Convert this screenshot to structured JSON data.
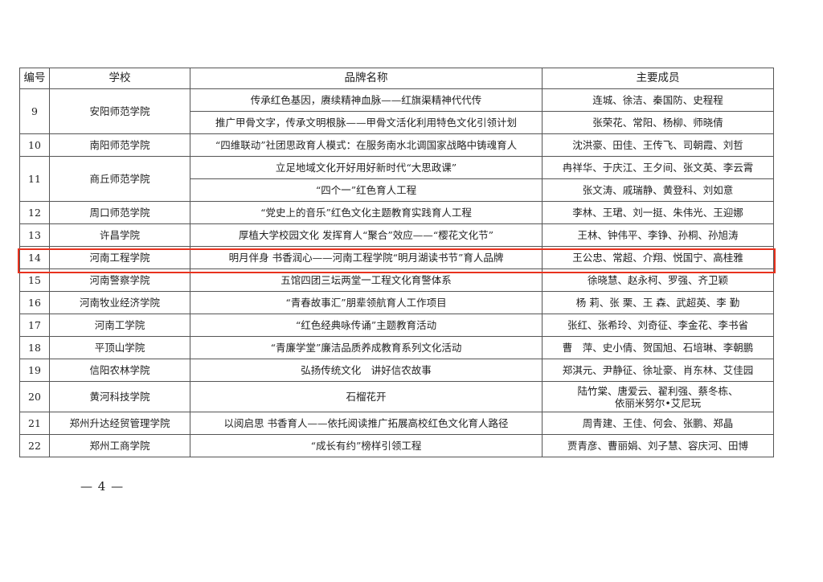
{
  "table": {
    "headers": [
      "编号",
      "学校",
      "品牌名称",
      "主要成员"
    ],
    "rows": [
      {
        "no": "9",
        "school": "安阳师范学院",
        "entries": [
          {
            "brand": "传承红色基因，赓续精神血脉——红旗渠精神代代传",
            "members": "连城、徐洁、秦国防、史程程"
          },
          {
            "brand": "推广甲骨文字，传承文明根脉——甲骨文活化利用特色文化引领计划",
            "members": "张荣花、常阳、杨柳、师晓倩"
          }
        ]
      },
      {
        "no": "10",
        "school": "南阳师范学院",
        "entries": [
          {
            "brand": "“四维联动”社团思政育人模式：在服务南水北调国家战略中铸魂育人",
            "members": "沈洪豪、田佳、王传飞、司朝霞、刘哲"
          }
        ]
      },
      {
        "no": "11",
        "school": "商丘师范学院",
        "entries": [
          {
            "brand": "立足地域文化开好用好新时代“大思政课”",
            "members": "冉祥华、于庆江、王夕间、张文英、李云霄"
          },
          {
            "brand": "“四个一”红色育人工程",
            "members": "张文涛、戚瑞静、黄登科、刘如意"
          }
        ]
      },
      {
        "no": "12",
        "school": "周口师范学院",
        "entries": [
          {
            "brand": "“党史上的音乐”红色文化主题教育实践育人工程",
            "members": "李林、王珺、刘一挺、朱伟光、王迎娜"
          }
        ]
      },
      {
        "no": "13",
        "school": "许昌学院",
        "entries": [
          {
            "brand": "厚植大学校园文化 发挥育人“聚合”效应——“樱花文化节”",
            "members": "王林、钟伟平、李铮、孙桐、孙旭涛"
          }
        ]
      },
      {
        "no": "14",
        "school": "河南工程学院",
        "highlighted": true,
        "entries": [
          {
            "brand": "明月伴身 书香润心——河南工程学院“明月湖读书节”育人品牌",
            "members": "王公忠、常超、介翔、悦国宁、高桂雅"
          }
        ]
      },
      {
        "no": "15",
        "school": "河南警察学院",
        "entries": [
          {
            "brand": "五馆四团三坛两堂一工程文化育警体系",
            "members": "徐晓慧、赵永柯、罗强、齐卫颖"
          }
        ]
      },
      {
        "no": "16",
        "school": "河南牧业经济学院",
        "entries": [
          {
            "brand": "“青春故事汇”朋辈领航育人工作项目",
            "members": "杨 莉、张 栗、王 森、武超英、李 勤"
          }
        ]
      },
      {
        "no": "17",
        "school": "河南工学院",
        "entries": [
          {
            "brand": "“红色经典咏传诵”主题教育活动",
            "members": "张红、张希玲、刘奇征、李金花、李书省"
          }
        ]
      },
      {
        "no": "18",
        "school": "平顶山学院",
        "entries": [
          {
            "brand": "“青廉学堂”廉洁品质养成教育系列文化活动",
            "members": "曹　萍、史小倩、贺国旭、石培琳、李朝鹏"
          }
        ]
      },
      {
        "no": "19",
        "school": "信阳农林学院",
        "entries": [
          {
            "brand": "弘扬传统文化　讲好信农故事",
            "members": "郑淇元、尹静征、徐址豪、肖东林、艾佳园"
          }
        ]
      },
      {
        "no": "20",
        "school": "黄河科技学院",
        "tall": true,
        "entries": [
          {
            "brand": "石榴花开",
            "members": "陆竹棠、唐爱云、翟利强、蔡冬栋、\n依丽米努尔•艾尼玩"
          }
        ]
      },
      {
        "no": "21",
        "school": "郑州升达经贸管理学院",
        "entries": [
          {
            "brand": "以阅启思 书香育人——依托阅读推广拓展高校红色文化育人路径",
            "members": "周青建、王佳、何会、张鹏、郑晶"
          }
        ]
      },
      {
        "no": "22",
        "school": "郑州工商学院",
        "entries": [
          {
            "brand": "“成长有约”榜样引领工程",
            "members": "贾青彦、曹丽娟、刘子慧、容庆河、田博"
          }
        ]
      }
    ]
  },
  "page_number": "— 4 —",
  "colors": {
    "highlight": "#e8321e",
    "border": "#555555"
  }
}
